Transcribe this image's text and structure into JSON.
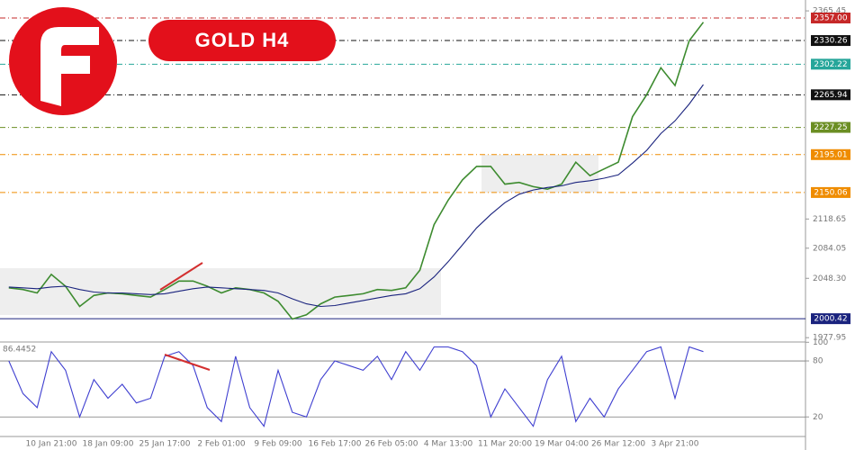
{
  "chart_data": [
    {
      "type": "line",
      "title": "GOLD H4",
      "categories": [
        null,
        null,
        null,
        "10 Jan 21:00",
        null,
        null,
        null,
        "18 Jan 09:00",
        null,
        null,
        null,
        "25 Jan 17:00",
        null,
        null,
        null,
        "2 Feb 01:00",
        null,
        null,
        null,
        "9 Feb 09:00",
        null,
        null,
        null,
        "16 Feb 17:00",
        null,
        null,
        null,
        "26 Feb 05:00",
        null,
        null,
        null,
        "4 Mar 13:00",
        null,
        null,
        null,
        "11 Mar 20:00",
        null,
        null,
        null,
        "19 Mar 04:00",
        null,
        null,
        null,
        "26 Mar 12:00",
        null,
        null,
        null,
        "3 Apr 21:00",
        null,
        null
      ],
      "series": [
        {
          "color": "#3d8b2f",
          "values": [
            2037,
            2035,
            2031,
            2053,
            2039,
            2015,
            2028,
            2031,
            2030,
            2028,
            2026,
            2035,
            2045,
            2045,
            2039,
            2031,
            2037,
            2035,
            2031,
            2021,
            2000,
            2005,
            2018,
            2026,
            2028,
            2030,
            2035,
            2034,
            2037,
            2058,
            2112,
            2141,
            2165,
            2181,
            2181,
            2160,
            2162,
            2157,
            2154,
            2160,
            2186,
            2170,
            2178,
            2186,
            2240,
            2266,
            2298,
            2277,
            2330,
            2352
          ]
        },
        {
          "color": "#1a237e",
          "values": [
            2038,
            2037,
            2036,
            2038,
            2039,
            2035,
            2032,
            2031,
            2031,
            2030,
            2029,
            2030,
            2033,
            2036,
            2038,
            2037,
            2036,
            2035,
            2034,
            2031,
            2024,
            2018,
            2015,
            2016,
            2019,
            2022,
            2025,
            2028,
            2030,
            2036,
            2050,
            2068,
            2088,
            2108,
            2124,
            2138,
            2148,
            2153,
            2156,
            2158,
            2162,
            2164,
            2167,
            2171,
            2185,
            2200,
            2220,
            2235,
            2255,
            2278
          ]
        }
      ],
      "ylim": [
        1972.8,
        2373
      ],
      "yticks": [
        {
          "value": 2365.45,
          "label": "2365.45"
        },
        {
          "value": 2118.65,
          "label": "2118.65"
        },
        {
          "value": 2084.05,
          "label": "2084.05"
        },
        {
          "value": 2048.3,
          "label": "2048.30"
        },
        {
          "value": 1977.95,
          "label": "1977.95"
        }
      ],
      "levels": [
        {
          "value": 2357,
          "label": "2357.00",
          "color": "#c62828"
        },
        {
          "value": 2330.26,
          "label": "2330.26",
          "color": "#111111"
        },
        {
          "value": 2302.22,
          "label": "2302.22",
          "color": "#26a69a"
        },
        {
          "value": 2265.94,
          "label": "2265.94",
          "color": "#111111"
        },
        {
          "value": 2227.25,
          "label": "2227.25",
          "color": "#6b8e23"
        },
        {
          "value": 2195.01,
          "label": "2195.01",
          "color": "#ef8c00"
        },
        {
          "value": 2150.06,
          "label": "2150.06",
          "color": "#ef8c00"
        },
        {
          "value": 2000.42,
          "label": "2000.42",
          "color": "#1a237e"
        }
      ]
    },
    {
      "type": "line",
      "annotation": "86.4452",
      "series": [
        {
          "color": "#3f3fd0",
          "values": [
            80,
            45,
            30,
            90,
            70,
            20,
            60,
            40,
            55,
            35,
            40,
            85,
            90,
            75,
            30,
            15,
            85,
            30,
            10,
            70,
            25,
            20,
            60,
            80,
            75,
            70,
            85,
            60,
            90,
            70,
            95,
            95,
            90,
            75,
            20,
            50,
            30,
            10,
            60,
            85,
            15,
            40,
            20,
            50,
            70,
            90,
            95,
            40,
            95,
            90
          ]
        }
      ],
      "ylim": [
        0,
        100
      ],
      "yticks": [
        20,
        80,
        100
      ]
    }
  ]
}
